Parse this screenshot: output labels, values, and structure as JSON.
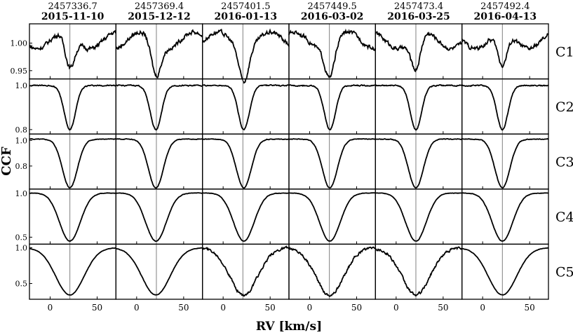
{
  "figure": {
    "ylabel": "CCF",
    "xlabel": "RV [km/s]"
  },
  "chart_data": {
    "type": "line",
    "columns": [
      {
        "jd": "2457336.7",
        "date": "2015-11-10",
        "center": 21.0
      },
      {
        "jd": "2457369.4",
        "date": "2015-12-12",
        "center": 20.5
      },
      {
        "jd": "2457401.5",
        "date": "2016-01-13",
        "center": 22.0
      },
      {
        "jd": "2457449.5",
        "date": "2016-03-02",
        "center": 21.5
      },
      {
        "jd": "2457473.4",
        "date": "2016-03-25",
        "center": 21.0
      },
      {
        "jd": "2457492.4",
        "date": "2016-04-13",
        "center": 21.0
      }
    ],
    "rows": [
      {
        "label": "C1",
        "ylim": [
          0.935,
          1.035
        ],
        "yticks": [
          0.95,
          1.0
        ],
        "yticklabels": [
          "0.95",
          "1.00"
        ],
        "depth": 0.06,
        "sigma": 5.0,
        "baseline": 1.005
      },
      {
        "label": "C2",
        "ylim": [
          0.78,
          1.03
        ],
        "yticks": [
          0.8,
          1.0
        ],
        "yticklabels": [
          "0.8",
          "1.0"
        ],
        "depth": 0.2,
        "sigma": 6.0,
        "baseline": 1.0
      },
      {
        "label": "C3",
        "ylim": [
          0.62,
          1.05
        ],
        "yticks": [
          0.8,
          1.0
        ],
        "yticklabels": [
          "0.8",
          "1.0"
        ],
        "depth": 0.38,
        "sigma": 8.0,
        "baseline": 1.01
      },
      {
        "label": "C4",
        "ylim": [
          0.42,
          1.05
        ],
        "yticks": [
          0.5,
          1.0
        ],
        "yticklabels": [
          "0.5",
          "1.0"
        ],
        "depth": 0.55,
        "sigma": 11.0,
        "baseline": 1.005
      },
      {
        "label": "C5",
        "ylim": [
          0.28,
          1.05
        ],
        "yticks": [
          0.5,
          1.0
        ],
        "yticklabels": [
          "0.5",
          "1.0"
        ],
        "depth": 0.66,
        "sigma": 15.0,
        "baseline": 1.0
      }
    ],
    "xlim": [
      -22,
      70
    ],
    "xticks": [
      0,
      50
    ],
    "xticklabels": [
      "0",
      "50"
    ],
    "vline_rv": 21,
    "grid": false,
    "note_values": "line profiles approximated by Gaussian absorption dips (depth, sigma in km/s) read off the panels"
  },
  "colors": {
    "line": "#000000",
    "vline": "#808080",
    "axes": "#000000",
    "background": "#ffffff"
  }
}
